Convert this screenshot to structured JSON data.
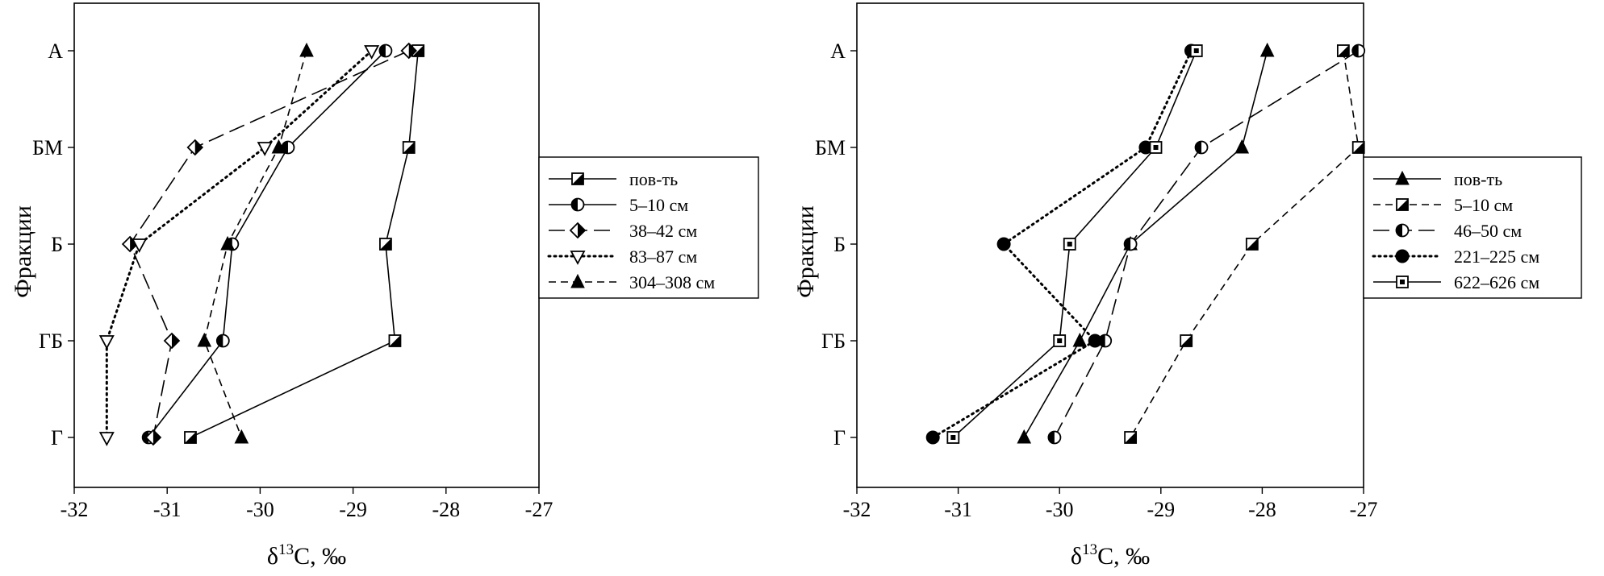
{
  "chart_data": [
    {
      "type": "line",
      "xlabel": "δ13C, ‰",
      "ylabel": "Фракции",
      "xlim": [
        -32,
        -27
      ],
      "xticks": [
        "-32",
        "-31",
        "-30",
        "-29",
        "-28",
        "-27"
      ],
      "categories": [
        "А",
        "БМ",
        "Б",
        "ГБ",
        "Г"
      ],
      "grid": false,
      "legend_position": "right",
      "series": [
        {
          "name": "пов-ть",
          "x": [
            -28.3,
            -28.4,
            -28.65,
            -28.55,
            -30.75
          ],
          "marker": "square-half",
          "dash": "solid"
        },
        {
          "name": "5–10 см",
          "x": [
            -28.65,
            -29.7,
            -30.3,
            -30.4,
            -31.2
          ],
          "marker": "circle-half",
          "dash": "solid"
        },
        {
          "name": "38–42 см",
          "x": [
            -28.4,
            -30.7,
            -31.4,
            -30.95,
            -31.15
          ],
          "marker": "diamond-half",
          "dash": "longdash"
        },
        {
          "name": "83–87 см",
          "x": [
            -28.8,
            -29.95,
            -31.3,
            -31.65,
            -31.65
          ],
          "marker": "triangle-down-open",
          "dash": "dotted"
        },
        {
          "name": "304–308 см",
          "x": [
            -29.5,
            -29.8,
            -30.35,
            -30.6,
            -30.2
          ],
          "marker": "triangle-filled",
          "dash": "dashed"
        }
      ]
    },
    {
      "type": "line",
      "xlabel": "δ13C, ‰",
      "ylabel": "Фракции",
      "xlim": [
        -32,
        -27
      ],
      "xticks": [
        "-32",
        "-31",
        "-30",
        "-29",
        "-28",
        "-27"
      ],
      "categories": [
        "А",
        "БМ",
        "Б",
        "ГБ",
        "Г"
      ],
      "grid": false,
      "legend_position": "right",
      "series": [
        {
          "name": "пов-ть",
          "x": [
            -27.95,
            -28.2,
            -29.3,
            -29.8,
            -30.35
          ],
          "marker": "triangle-filled",
          "dash": "solid"
        },
        {
          "name": "5–10 см",
          "x": [
            -27.2,
            -27.05,
            -28.1,
            -28.75,
            -29.3
          ],
          "marker": "square-half",
          "dash": "dashed"
        },
        {
          "name": "46–50 см",
          "x": [
            -27.05,
            -28.6,
            -29.3,
            -29.55,
            -30.05
          ],
          "marker": "circle-half",
          "dash": "longdash"
        },
        {
          "name": "221–225 см",
          "x": [
            -28.7,
            -29.15,
            -30.55,
            -29.65,
            -31.25
          ],
          "marker": "circle-filled",
          "dash": "dotted"
        },
        {
          "name": "622–626 см",
          "x": [
            -28.65,
            -29.05,
            -29.9,
            -30.0,
            -31.05
          ],
          "marker": "square-dot",
          "dash": "solid"
        }
      ]
    }
  ]
}
